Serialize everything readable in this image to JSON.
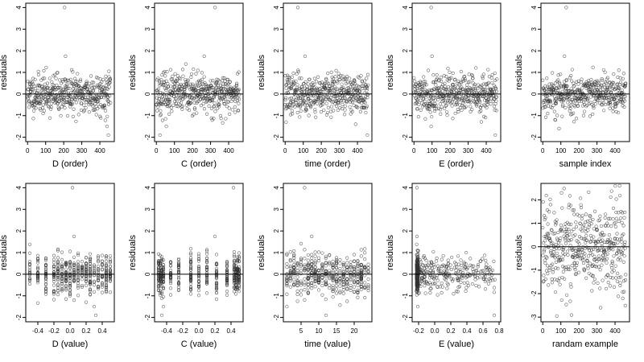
{
  "chart_data": [
    {
      "id": "p1",
      "type": "scatter",
      "xlabel": "D (order)",
      "ylabel": "residuals",
      "xlim": [
        -10,
        480
      ],
      "ylim": [
        -2.2,
        4.2
      ],
      "xticks": [
        0,
        100,
        200,
        300,
        400
      ],
      "yticks": [
        -2,
        -1,
        0,
        1,
        2,
        3,
        4
      ],
      "hline": 0,
      "gen": "order",
      "seed": 11,
      "n": 460,
      "sd": 0.45,
      "outliers": [
        [
          205,
          4.0
        ],
        [
          210,
          1.75
        ],
        [
          447,
          -1.9
        ],
        [
          440,
          -1.5
        ]
      ]
    },
    {
      "id": "p2",
      "type": "scatter",
      "xlabel": "C (order)",
      "ylabel": "residuals",
      "xlim": [
        -10,
        480
      ],
      "ylim": [
        -2.2,
        4.2
      ],
      "xticks": [
        0,
        100,
        200,
        300,
        400
      ],
      "yticks": [
        -2,
        -1,
        0,
        1,
        2,
        3,
        4
      ],
      "hline": 0,
      "gen": "order",
      "seed": 23,
      "n": 460,
      "sd": 0.45,
      "outliers": [
        [
          325,
          4.0
        ],
        [
          265,
          1.75
        ],
        [
          20,
          -1.9
        ],
        [
          55,
          -1.5
        ]
      ]
    },
    {
      "id": "p3",
      "type": "scatter",
      "xlabel": "time (order)",
      "ylabel": "residuals",
      "xlim": [
        -10,
        480
      ],
      "ylim": [
        -2.2,
        4.2
      ],
      "xticks": [
        0,
        100,
        200,
        300,
        400
      ],
      "yticks": [
        -2,
        -1,
        0,
        1,
        2,
        3,
        4
      ],
      "hline": 0,
      "gen": "order",
      "seed": 37,
      "n": 460,
      "sd": 0.45,
      "outliers": [
        [
          70,
          4.0
        ],
        [
          110,
          1.75
        ],
        [
          455,
          -1.9
        ],
        [
          5,
          -1.3
        ]
      ]
    },
    {
      "id": "p4",
      "type": "scatter",
      "xlabel": "E (order)",
      "ylabel": "residuals",
      "xlim": [
        -10,
        480
      ],
      "ylim": [
        -2.2,
        4.2
      ],
      "xticks": [
        0,
        100,
        200,
        300,
        400
      ],
      "yticks": [
        -2,
        -1,
        0,
        1,
        2,
        3,
        4
      ],
      "hline": 0,
      "gen": "order",
      "seed": 41,
      "n": 460,
      "sd": 0.45,
      "outliers": [
        [
          95,
          4.0
        ],
        [
          100,
          1.75
        ],
        [
          450,
          -1.9
        ],
        [
          95,
          -1.5
        ]
      ]
    },
    {
      "id": "p5",
      "type": "scatter",
      "xlabel": "sample index",
      "ylabel": "residuals",
      "xlim": [
        -10,
        480
      ],
      "ylim": [
        -2.2,
        4.2
      ],
      "xticks": [
        0,
        100,
        200,
        300,
        400
      ],
      "yticks": [
        -2,
        -1,
        0,
        1,
        2,
        3,
        4
      ],
      "hline": 0,
      "gen": "order",
      "seed": 53,
      "n": 460,
      "sd": 0.45,
      "outliers": [
        [
          130,
          4.0
        ],
        [
          120,
          1.75
        ],
        [
          90,
          -1.6
        ],
        [
          70,
          -1.2
        ]
      ]
    },
    {
      "id": "p6",
      "type": "scatter",
      "xlabel": "D (value)",
      "ylabel": "residuals",
      "xlim": [
        -0.55,
        0.55
      ],
      "ylim": [
        -2.2,
        4.2
      ],
      "xticks": [
        -0.4,
        -0.2,
        0.0,
        0.2,
        0.4
      ],
      "yticks": [
        -2,
        -1,
        0,
        1,
        2,
        3,
        4
      ],
      "hline": 0,
      "gen": "levels",
      "seed": 61,
      "n": 460,
      "sd": 0.45,
      "levels": [
        -0.5,
        -0.4,
        -0.3,
        -0.2,
        -0.15,
        -0.1,
        -0.05,
        0,
        0.05,
        0.1,
        0.15,
        0.2,
        0.25,
        0.3,
        0.35,
        0.4,
        0.45,
        0.5
      ],
      "outliers": [
        [
          0.03,
          4.0
        ],
        [
          0.05,
          1.75
        ],
        [
          0.32,
          -1.9
        ],
        [
          0.3,
          -1.5
        ]
      ]
    },
    {
      "id": "p7",
      "type": "scatter",
      "xlabel": "C (value)",
      "ylabel": "residuals",
      "xlim": [
        -0.55,
        0.55
      ],
      "ylim": [
        -2.2,
        4.2
      ],
      "xticks": [
        -0.4,
        -0.2,
        0.0,
        0.2,
        0.4
      ],
      "yticks": [
        -2,
        -1,
        0,
        1,
        2,
        3,
        4
      ],
      "hline": 0,
      "gen": "levels",
      "seed": 71,
      "n": 460,
      "sd": 0.45,
      "levels": [
        -0.5,
        -0.48,
        -0.46,
        -0.44,
        -0.35,
        -0.25,
        -0.1,
        0,
        0.1,
        0.22,
        0.35,
        0.44,
        0.46,
        0.48,
        0.5
      ],
      "outliers": [
        [
          0.43,
          4.0
        ],
        [
          0.2,
          1.75
        ],
        [
          -0.46,
          -1.9
        ],
        [
          -0.44,
          -1.5
        ]
      ]
    },
    {
      "id": "p8",
      "type": "scatter",
      "xlabel": "time (value)",
      "ylabel": "residuals",
      "xlim": [
        0,
        25
      ],
      "ylim": [
        -2.2,
        4.2
      ],
      "xticks": [
        5,
        10,
        15,
        20
      ],
      "yticks": [
        -2,
        -1,
        0,
        1,
        2,
        3,
        4
      ],
      "hline": 0,
      "gen": "levels",
      "seed": 83,
      "n": 460,
      "sd": 0.45,
      "levels": [
        1,
        2,
        3,
        4,
        5,
        6,
        7,
        8,
        9,
        10,
        11,
        12,
        13,
        14,
        15,
        16,
        17,
        18,
        19,
        20,
        21,
        22,
        23,
        24
      ],
      "outliers": [
        [
          6,
          4.0
        ],
        [
          8,
          1.75
        ],
        [
          12,
          -1.9
        ],
        [
          1,
          -1.5
        ]
      ]
    },
    {
      "id": "p9",
      "type": "scatter",
      "xlabel": "E (value)",
      "ylabel": "residuals",
      "xlim": [
        -0.28,
        0.82
      ],
      "ylim": [
        -2.2,
        4.2
      ],
      "xticks": [
        -0.2,
        0.0,
        0.2,
        0.4,
        0.6,
        0.8
      ],
      "yticks": [
        -2,
        -1,
        0,
        1,
        2,
        3,
        4
      ],
      "hline": 0,
      "gen": "skew",
      "seed": 97,
      "n": 460,
      "sd": 0.45,
      "outliers": [
        [
          -0.22,
          4.0
        ],
        [
          -0.22,
          1.75
        ],
        [
          0.74,
          -1.9
        ],
        [
          -0.21,
          -1.5
        ]
      ]
    },
    {
      "id": "p10",
      "type": "scatter",
      "xlabel": "randam example",
      "ylabel": "residuals",
      "xlim": [
        -10,
        480
      ],
      "ylim": [
        -3.2,
        2.7
      ],
      "xticks": [
        0,
        100,
        200,
        300,
        400
      ],
      "yticks": [
        -3,
        -2,
        -1,
        0,
        1,
        2
      ],
      "hline": 0,
      "gen": "random",
      "seed": 109,
      "n": 460,
      "sd": 1.0,
      "outliers": []
    }
  ]
}
